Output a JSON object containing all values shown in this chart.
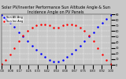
{
  "title": "Solar PV/Inverter Performance Sun Altitude Angle & Sun Incidence Angle on PV Panels",
  "legend_labels": [
    "Sun Alt Ang",
    "Sun Inc Ang"
  ],
  "legend_colors": [
    "#0000ff",
    "#ff0000"
  ],
  "background_color": "#c8c8c8",
  "plot_bg_color": "#c8c8c8",
  "grid_color": "#ffffff",
  "ylim": [
    0,
    90
  ],
  "xlim": [
    0,
    1
  ],
  "yticks": [
    0,
    10,
    20,
    30,
    40,
    50,
    60,
    70,
    80,
    90
  ],
  "xtick_count": 13,
  "blue_x": [
    0.0,
    0.04,
    0.08,
    0.12,
    0.16,
    0.2,
    0.24,
    0.28,
    0.32,
    0.36,
    0.4,
    0.44,
    0.48,
    0.52,
    0.56,
    0.6,
    0.64,
    0.68,
    0.72,
    0.76,
    0.8,
    0.84,
    0.88,
    0.92,
    0.96,
    1.0
  ],
  "blue_y": [
    88,
    82,
    75,
    67,
    58,
    50,
    42,
    34,
    27,
    20,
    14,
    9,
    5,
    5,
    9,
    14,
    20,
    27,
    34,
    42,
    50,
    58,
    67,
    75,
    82,
    88
  ],
  "red_x": [
    0.0,
    0.04,
    0.08,
    0.12,
    0.16,
    0.2,
    0.24,
    0.28,
    0.32,
    0.36,
    0.4,
    0.44,
    0.48,
    0.52,
    0.56,
    0.6,
    0.64,
    0.68,
    0.72,
    0.76,
    0.8,
    0.84,
    0.88,
    0.92,
    0.96,
    1.0
  ],
  "red_y": [
    2,
    8,
    18,
    30,
    42,
    52,
    60,
    66,
    70,
    72,
    72,
    70,
    66,
    66,
    70,
    72,
    72,
    70,
    66,
    60,
    52,
    42,
    30,
    18,
    8,
    2
  ],
  "title_fontsize": 3.5,
  "tick_fontsize": 2.5,
  "legend_fontsize": 2.5,
  "marker_size": 0.8
}
